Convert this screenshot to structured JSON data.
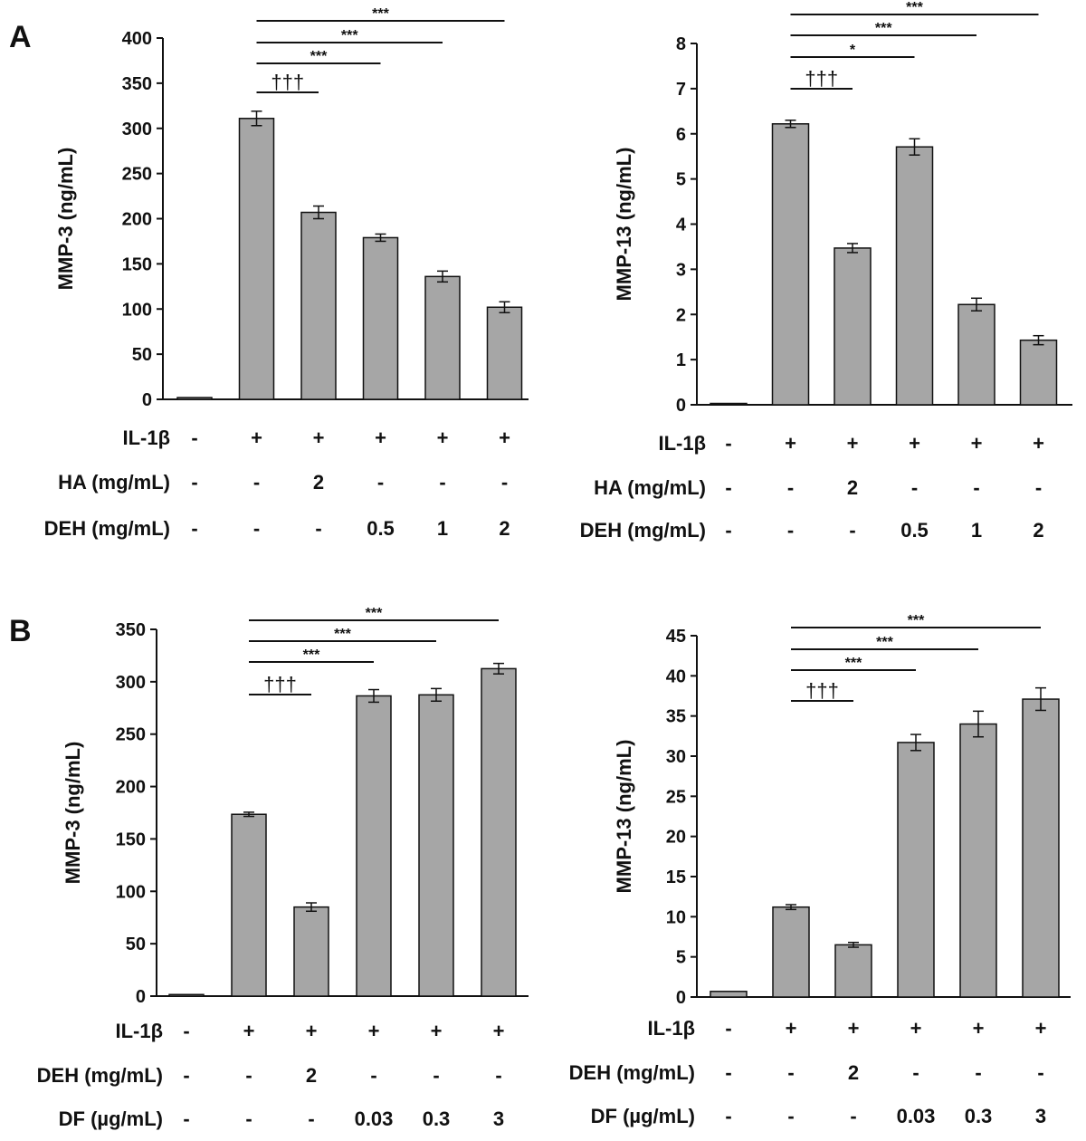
{
  "panels": [
    "A",
    "B"
  ],
  "chart_data": [
    {
      "type": "bar",
      "panel": "A",
      "ylabel": "MMP-3 (ng/mL)",
      "ylim": [
        0,
        400
      ],
      "yticks": [
        "0",
        "50",
        "100",
        "150",
        "200",
        "250",
        "300",
        "350",
        "400"
      ],
      "values": [
        2,
        311,
        207,
        179,
        136,
        102
      ],
      "errors": [
        0,
        8,
        7,
        4,
        6,
        6
      ],
      "bar_color": "#a6a6a6",
      "conditions": [
        {
          "label": "IL-1β",
          "cells": [
            "-",
            "+",
            "+",
            "+",
            "+",
            "+"
          ]
        },
        {
          "label": "HA (mg/mL)",
          "cells": [
            "-",
            "-",
            "2",
            "-",
            "-",
            "-"
          ]
        },
        {
          "label": "DEH (mg/mL)",
          "cells": [
            "-",
            "-",
            "-",
            "0.5",
            "1",
            "2"
          ]
        }
      ],
      "annotations": [
        {
          "from": 1,
          "to": 2,
          "text": "†††",
          "level": 0
        },
        {
          "from": 1,
          "to": 3,
          "text": "***",
          "level": 1
        },
        {
          "from": 1,
          "to": 4,
          "text": "***",
          "level": 2
        },
        {
          "from": 1,
          "to": 5,
          "text": "***",
          "level": 3
        }
      ]
    },
    {
      "type": "bar",
      "panel": "A",
      "ylabel": "MMP-13 (ng/mL)",
      "ylim": [
        0,
        8
      ],
      "yticks": [
        "0",
        "1",
        "2",
        "3",
        "4",
        "5",
        "6",
        "7",
        "8"
      ],
      "values": [
        0.03,
        6.22,
        3.47,
        5.71,
        2.22,
        1.43
      ],
      "errors": [
        0,
        0.08,
        0.1,
        0.18,
        0.14,
        0.1
      ],
      "bar_color": "#a6a6a6",
      "conditions": [
        {
          "label": "IL-1β",
          "cells": [
            "-",
            "+",
            "+",
            "+",
            "+",
            "+"
          ]
        },
        {
          "label": "HA (mg/mL)",
          "cells": [
            "-",
            "-",
            "2",
            "-",
            "-",
            "-"
          ]
        },
        {
          "label": "DEH (mg/mL)",
          "cells": [
            "-",
            "-",
            "-",
            "0.5",
            "1",
            "2"
          ]
        }
      ],
      "annotations": [
        {
          "from": 1,
          "to": 2,
          "text": "†††",
          "level": 0
        },
        {
          "from": 1,
          "to": 3,
          "text": "*",
          "level": 1
        },
        {
          "from": 1,
          "to": 4,
          "text": "***",
          "level": 2
        },
        {
          "from": 1,
          "to": 5,
          "text": "***",
          "level": 3
        }
      ]
    },
    {
      "type": "bar",
      "panel": "B",
      "ylabel": "MMP-3 (ng/mL)",
      "ylim": [
        0,
        350
      ],
      "yticks": [
        "0",
        "50",
        "100",
        "150",
        "200",
        "250",
        "300",
        "350"
      ],
      "values": [
        1.5,
        173.5,
        85,
        286.5,
        287.5,
        312.5
      ],
      "errors": [
        0,
        2,
        4,
        6,
        6,
        5
      ],
      "bar_color": "#a6a6a6",
      "conditions": [
        {
          "label": "IL-1β",
          "cells": [
            "-",
            "+",
            "+",
            "+",
            "+",
            "+"
          ]
        },
        {
          "label": "DEH (mg/mL)",
          "cells": [
            "-",
            "-",
            "2",
            "-",
            "-",
            "-"
          ]
        },
        {
          "label": "DF (µg/mL)",
          "cells": [
            "-",
            "-",
            "-",
            "0.03",
            "0.3",
            "3"
          ]
        }
      ],
      "annotations": [
        {
          "from": 1,
          "to": 2,
          "text": "†††",
          "level": 0
        },
        {
          "from": 1,
          "to": 3,
          "text": "***",
          "level": 1
        },
        {
          "from": 1,
          "to": 4,
          "text": "***",
          "level": 2
        },
        {
          "from": 1,
          "to": 5,
          "text": "***",
          "level": 3
        }
      ]
    },
    {
      "type": "bar",
      "panel": "B",
      "ylabel": "MMP-13 (ng/mL)",
      "ylim": [
        0,
        45
      ],
      "yticks": [
        "0",
        "5",
        "10",
        "15",
        "20",
        "25",
        "30",
        "35",
        "40",
        "45"
      ],
      "values": [
        0.7,
        11.2,
        6.5,
        31.7,
        34.0,
        37.1
      ],
      "errors": [
        0,
        0.3,
        0.3,
        1.0,
        1.6,
        1.4
      ],
      "bar_color": "#a6a6a6",
      "conditions": [
        {
          "label": "IL-1β",
          "cells": [
            "-",
            "+",
            "+",
            "+",
            "+",
            "+"
          ]
        },
        {
          "label": "DEH (mg/mL)",
          "cells": [
            "-",
            "-",
            "2",
            "-",
            "-",
            "-"
          ]
        },
        {
          "label": "DF (µg/mL)",
          "cells": [
            "-",
            "-",
            "-",
            "0.03",
            "0.3",
            "3"
          ]
        }
      ],
      "annotations": [
        {
          "from": 1,
          "to": 2,
          "text": "†††",
          "level": 0
        },
        {
          "from": 1,
          "to": 3,
          "text": "***",
          "level": 1
        },
        {
          "from": 1,
          "to": 4,
          "text": "***",
          "level": 2
        },
        {
          "from": 1,
          "to": 5,
          "text": "***",
          "level": 3
        }
      ]
    }
  ]
}
